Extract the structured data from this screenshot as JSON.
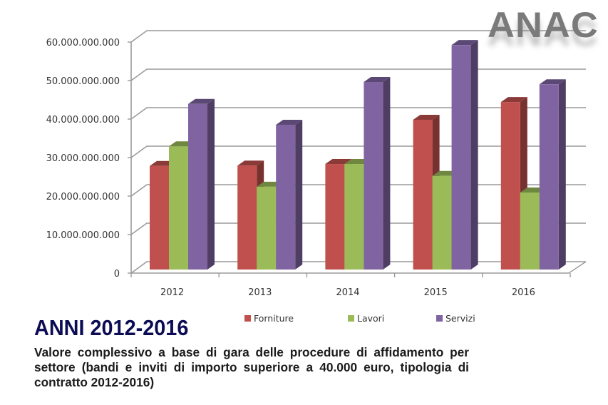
{
  "logo": {
    "text": "ANAC"
  },
  "caption": {
    "title": "ANNI 2012-2016",
    "subtitle": "Valore complessivo a base di gara delle procedure di affidamento per settore (bandi e inviti di importo superiore a 40.000 euro, tipologia di contratto 2012-2016)"
  },
  "chart_data": {
    "type": "bar",
    "style": "3d-clustered-column",
    "title": "ANNI 2012-2016",
    "subtitle": "Valore complessivo a base di gara delle procedure di affidamento per settore (bandi e inviti di importo superiore a 40.000 euro, tipologia di contratto 2012-2016)",
    "xlabel": "",
    "ylabel": "",
    "categories": [
      "2012",
      "2013",
      "2014",
      "2015",
      "2016"
    ],
    "series": [
      {
        "name": "Forniture",
        "color": "#c0504d",
        "values": [
          26900000000,
          27000000000,
          27400000000,
          38900000000,
          43500000000
        ]
      },
      {
        "name": "Lavori",
        "color": "#9bbb59",
        "values": [
          32000000000,
          21500000000,
          27400000000,
          24300000000,
          20000000000
        ]
      },
      {
        "name": "Servizi",
        "color": "#8064a2",
        "values": [
          43000000000,
          37600000000,
          48700000000,
          58300000000,
          48100000000
        ]
      }
    ],
    "ylim": [
      0,
      60000000000
    ],
    "yticks": [
      0,
      10000000000,
      20000000000,
      30000000000,
      40000000000,
      50000000000,
      60000000000
    ],
    "ytick_labels": [
      "0",
      "10.000.000.000",
      "20.000.000.000",
      "30.000.000.000",
      "40.000.000.000",
      "50.000.000.000",
      "60.000.000.000"
    ],
    "grid": true,
    "legend_position": "bottom"
  }
}
